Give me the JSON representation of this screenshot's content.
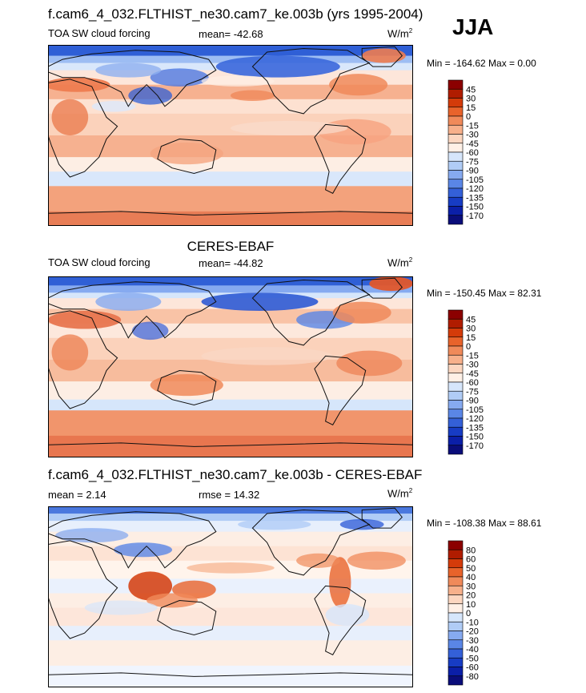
{
  "season": "JJA",
  "units_base": "W/m",
  "units_exp": "2",
  "chart_data": [
    {
      "type": "heatmap",
      "title": "f.cam6_4_032.FLTHIST_ne30.cam7_ke.003b (yrs 1995-2004)",
      "variable": "TOA SW cloud forcing",
      "mean_text": "mean= -42.68",
      "stats_text": "Min = -164.62 Max =   0.00",
      "min": -164.62,
      "max": 0.0,
      "mean": -42.68,
      "colorbar_levels": [
        "45",
        "30",
        "15",
        "0",
        "-15",
        "-30",
        "-45",
        "-60",
        "-75",
        "-90",
        "-105",
        "-120",
        "-135",
        "-150",
        "-170"
      ],
      "colorbar_colors": [
        "#8b0000",
        "#b01c00",
        "#d43b0a",
        "#e8632b",
        "#f08a5a",
        "#f7b08b",
        "#fcd6c0",
        "#fff0e6",
        "#d6e6fb",
        "#b0ccf6",
        "#86aaf0",
        "#5a86e6",
        "#3460d8",
        "#173cc4",
        "#0b1fa8",
        "#0a0d7a"
      ]
    },
    {
      "type": "heatmap",
      "title": "CERES-EBAF",
      "variable": "TOA SW cloud forcing",
      "mean_text": "mean= -44.82",
      "stats_text": "Min = -150.45 Max =  82.31",
      "min": -150.45,
      "max": 82.31,
      "mean": -44.82,
      "colorbar_levels": [
        "45",
        "30",
        "15",
        "0",
        "-15",
        "-30",
        "-45",
        "-60",
        "-75",
        "-90",
        "-105",
        "-120",
        "-135",
        "-150",
        "-170"
      ],
      "colorbar_colors": [
        "#8b0000",
        "#b01c00",
        "#d43b0a",
        "#e8632b",
        "#f08a5a",
        "#f7b08b",
        "#fcd6c0",
        "#fff0e6",
        "#d6e6fb",
        "#b0ccf6",
        "#86aaf0",
        "#5a86e6",
        "#3460d8",
        "#173cc4",
        "#0b1fa8",
        "#0a0d7a"
      ]
    },
    {
      "type": "heatmap",
      "title": "f.cam6_4_032.FLTHIST_ne30.cam7_ke.003b - CERES-EBAF",
      "variable": "",
      "mean_text": "mean =   2.14",
      "rmse_text": "rmse =  14.32",
      "stats_text": "Min = -108.38 Max =  88.61",
      "min": -108.38,
      "max": 88.61,
      "mean": 2.14,
      "rmse": 14.32,
      "colorbar_levels": [
        "80",
        "60",
        "50",
        "40",
        "30",
        "20",
        "10",
        "0",
        "-10",
        "-20",
        "-30",
        "-40",
        "-50",
        "-60",
        "-80"
      ],
      "colorbar_colors": [
        "#8b0000",
        "#b01c00",
        "#d43b0a",
        "#e8632b",
        "#f08a5a",
        "#f7b08b",
        "#fcd6c0",
        "#fff0e6",
        "#d6e6fb",
        "#b0ccf6",
        "#86aaf0",
        "#5a86e6",
        "#3460d8",
        "#173cc4",
        "#0b1fa8",
        "#0a0d7a"
      ]
    }
  ]
}
